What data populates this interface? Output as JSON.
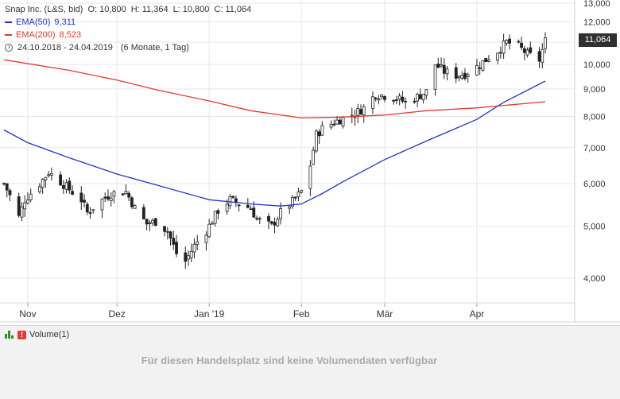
{
  "legend": {
    "title": "Snap Inc. (L&S, bid)",
    "ohlc": {
      "o_label": "O:",
      "o": "10,800",
      "h_label": "H:",
      "h": "11,364",
      "l_label": "L:",
      "l": "10,800",
      "c_label": "C:",
      "c": "11,064"
    },
    "ema50": {
      "label": "EMA(50)",
      "value": "9,311",
      "color": "#2233cc"
    },
    "ema200": {
      "label": "EMA(200)",
      "value": "8,523",
      "color": "#e03a2e"
    },
    "date_range": "24.10.2018 - 24.04.2019",
    "period": "(6 Monate, 1 Tag)"
  },
  "last_price": "11,064",
  "volume": {
    "label": "Volume(1)",
    "message": "Für diesen Handelsplatz sind keine Volumendaten verfügbar"
  },
  "chart_data": {
    "type": "candlestick",
    "x_range": [
      "2018-10-24",
      "2019-04-24"
    ],
    "x_ticks": [
      {
        "label": "Nov",
        "date": "2018-11-01"
      },
      {
        "label": "Dez",
        "date": "2018-12-01"
      },
      {
        "label": "Jan '19",
        "date": "2019-01-01"
      },
      {
        "label": "Feb",
        "date": "2019-02-01"
      },
      {
        "label": "Mär",
        "date": "2019-03-01"
      },
      {
        "label": "Apr",
        "date": "2019-04-01"
      }
    ],
    "y_scale": "log",
    "ylim": [
      3.6,
      13.0
    ],
    "y_ticks": [
      {
        "label": "4,000",
        "value": 4
      },
      {
        "label": "5,000",
        "value": 5
      },
      {
        "label": "6,000",
        "value": 6
      },
      {
        "label": "7,000",
        "value": 7
      },
      {
        "label": "8,000",
        "value": 8
      },
      {
        "label": "9,000",
        "value": 9
      },
      {
        "label": "10,000",
        "value": 10
      },
      {
        "label": "11,000",
        "value": 11
      },
      {
        "label": "12,000",
        "value": 12
      },
      {
        "label": "13,000",
        "value": 13
      }
    ],
    "grid": true,
    "close_path": [
      [
        "2018-10-24",
        6.0
      ],
      [
        "2018-10-26",
        5.7
      ],
      [
        "2018-10-29",
        5.2
      ],
      [
        "2018-10-31",
        5.6
      ],
      [
        "2018-11-05",
        6.0
      ],
      [
        "2018-11-08",
        6.3
      ],
      [
        "2018-11-12",
        6.05
      ],
      [
        "2018-11-15",
        5.85
      ],
      [
        "2018-11-19",
        5.6
      ],
      [
        "2018-11-21",
        5.3
      ],
      [
        "2018-11-26",
        5.6
      ],
      [
        "2018-11-29",
        5.75
      ],
      [
        "2018-12-04",
        5.8
      ],
      [
        "2018-12-07",
        5.4
      ],
      [
        "2018-12-11",
        5.05
      ],
      [
        "2018-12-14",
        5.1
      ],
      [
        "2018-12-18",
        4.9
      ],
      [
        "2018-12-21",
        4.45
      ],
      [
        "2018-12-24",
        4.3
      ],
      [
        "2018-12-27",
        4.6
      ],
      [
        "2018-12-31",
        4.9
      ],
      [
        "2019-01-04",
        5.35
      ],
      [
        "2019-01-08",
        5.6
      ],
      [
        "2019-01-11",
        5.5
      ],
      [
        "2019-01-15",
        5.4
      ],
      [
        "2019-01-17",
        5.15
      ],
      [
        "2019-01-22",
        5.0
      ],
      [
        "2019-01-25",
        5.3
      ],
      [
        "2019-01-29",
        5.55
      ],
      [
        "2019-02-01",
        5.8
      ],
      [
        "2019-02-04",
        6.5
      ],
      [
        "2019-02-06",
        7.4
      ],
      [
        "2019-02-08",
        7.6
      ],
      [
        "2019-02-12",
        7.8
      ],
      [
        "2019-02-15",
        7.95
      ],
      [
        "2019-02-19",
        8.1
      ],
      [
        "2019-02-22",
        8.3
      ],
      [
        "2019-02-26",
        8.8
      ],
      [
        "2019-03-01",
        8.75
      ],
      [
        "2019-03-05",
        8.65
      ],
      [
        "2019-03-08",
        8.5
      ],
      [
        "2019-03-12",
        8.7
      ],
      [
        "2019-03-15",
        8.9
      ],
      [
        "2019-03-18",
        10.0
      ],
      [
        "2019-03-21",
        9.7
      ],
      [
        "2019-03-25",
        9.55
      ],
      [
        "2019-03-28",
        9.6
      ],
      [
        "2019-04-01",
        9.9
      ],
      [
        "2019-04-04",
        10.2
      ],
      [
        "2019-04-08",
        10.6
      ],
      [
        "2019-04-11",
        11.0
      ],
      [
        "2019-04-15",
        10.8
      ],
      [
        "2019-04-18",
        10.45
      ],
      [
        "2019-04-22",
        10.2
      ],
      [
        "2019-04-24",
        11.064
      ]
    ],
    "series": [
      {
        "name": "EMA(50)",
        "color": "#2233cc",
        "points": [
          [
            "2018-10-24",
            7.55
          ],
          [
            "2018-11-01",
            7.15
          ],
          [
            "2018-11-15",
            6.7
          ],
          [
            "2018-12-01",
            6.25
          ],
          [
            "2018-12-15",
            5.95
          ],
          [
            "2019-01-01",
            5.6
          ],
          [
            "2019-01-15",
            5.5
          ],
          [
            "2019-01-25",
            5.45
          ],
          [
            "2019-02-01",
            5.5
          ],
          [
            "2019-02-08",
            5.75
          ],
          [
            "2019-02-15",
            6.05
          ],
          [
            "2019-03-01",
            6.65
          ],
          [
            "2019-03-15",
            7.2
          ],
          [
            "2019-04-01",
            7.9
          ],
          [
            "2019-04-10",
            8.5
          ],
          [
            "2019-04-24",
            9.311
          ]
        ]
      },
      {
        "name": "EMA(200)",
        "color": "#e03a2e",
        "points": [
          [
            "2018-10-24",
            10.2
          ],
          [
            "2018-11-15",
            9.75
          ],
          [
            "2018-12-01",
            9.35
          ],
          [
            "2018-12-15",
            8.95
          ],
          [
            "2019-01-01",
            8.55
          ],
          [
            "2019-01-15",
            8.2
          ],
          [
            "2019-02-01",
            7.95
          ],
          [
            "2019-02-15",
            7.98
          ],
          [
            "2019-03-01",
            8.05
          ],
          [
            "2019-03-15",
            8.2
          ],
          [
            "2019-04-01",
            8.3
          ],
          [
            "2019-04-24",
            8.523
          ]
        ]
      }
    ]
  }
}
